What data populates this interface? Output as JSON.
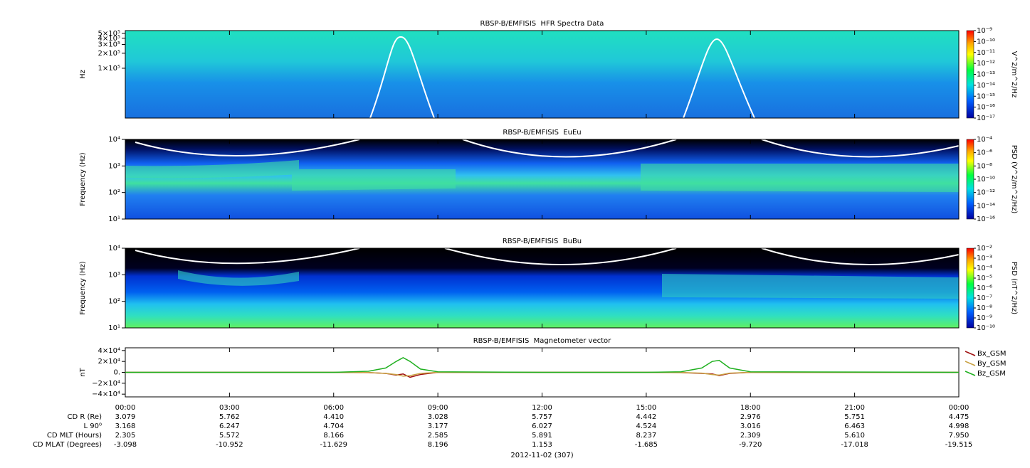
{
  "chart_data": [
    {
      "type": "spectrogram",
      "title": "RBSP-B/EMFISIS  HFR Spectra Data",
      "ylabel": "Hz",
      "log": true,
      "ylim": [
        10000,
        570000
      ],
      "yticks": [
        {
          "value": 500000,
          "label": "5×10⁵"
        },
        {
          "value": 400000,
          "label": "4×10⁵"
        },
        {
          "value": 300000,
          "label": "3×10⁵"
        },
        {
          "value": 200000,
          "label": "2×10⁵"
        },
        {
          "value": 100000,
          "label": "1×10⁵"
        }
      ],
      "colorbar": {
        "label": "V^2/m^2/Hz",
        "log": true,
        "lim": [
          1e-17,
          1e-09
        ],
        "ticks": [
          {
            "value": 1e-09,
            "label": "10⁻⁹"
          },
          {
            "value": 1e-10,
            "label": "10⁻¹⁰"
          },
          {
            "value": 1e-11,
            "label": "10⁻¹¹"
          },
          {
            "value": 1e-12,
            "label": "10⁻¹²"
          },
          {
            "value": 1e-13,
            "label": "10⁻¹³"
          },
          {
            "value": 1e-14,
            "label": "10⁻¹⁴"
          },
          {
            "value": 1e-15,
            "label": "10⁻¹⁵"
          },
          {
            "value": 1e-16,
            "label": "10⁻¹⁶"
          },
          {
            "value": 1e-17,
            "label": "10⁻¹⁷"
          }
        ]
      }
    },
    {
      "type": "spectrogram",
      "title": "RBSP-B/EMFISIS  EuEu",
      "ylabel": "Frequency (Hz)",
      "log": true,
      "ylim": [
        10,
        10000
      ],
      "yticks": [
        {
          "value": 10000,
          "label": "10⁴"
        },
        {
          "value": 1000,
          "label": "10³"
        },
        {
          "value": 100,
          "label": "10²"
        },
        {
          "value": 10,
          "label": "10¹"
        }
      ],
      "colorbar": {
        "label": "PSD (V^2/m^2/Hz)",
        "log": true,
        "lim": [
          1e-16,
          0.0001
        ],
        "ticks": [
          {
            "value": 0.0001,
            "label": "10⁻⁴"
          },
          {
            "value": 1e-06,
            "label": "10⁻⁶"
          },
          {
            "value": 1e-08,
            "label": "10⁻⁸"
          },
          {
            "value": 1e-10,
            "label": "10⁻¹⁰"
          },
          {
            "value": 1e-12,
            "label": "10⁻¹²"
          },
          {
            "value": 1e-14,
            "label": "10⁻¹⁴"
          },
          {
            "value": 1e-16,
            "label": "10⁻¹⁶"
          }
        ]
      }
    },
    {
      "type": "spectrogram",
      "title": "RBSP-B/EMFISIS  BuBu",
      "ylabel": "Frequency (Hz)",
      "log": true,
      "ylim": [
        10,
        10000
      ],
      "yticks": [
        {
          "value": 10000,
          "label": "10⁴"
        },
        {
          "value": 1000,
          "label": "10³"
        },
        {
          "value": 100,
          "label": "10²"
        },
        {
          "value": 10,
          "label": "10¹"
        }
      ],
      "colorbar": {
        "label": "PSD (nT^2/Hz)",
        "log": true,
        "lim": [
          1e-10,
          0.01
        ],
        "ticks": [
          {
            "value": 0.01,
            "label": "10⁻²"
          },
          {
            "value": 0.001,
            "label": "10⁻³"
          },
          {
            "value": 0.0001,
            "label": "10⁻⁴"
          },
          {
            "value": 1e-05,
            "label": "10⁻⁵"
          },
          {
            "value": 1e-06,
            "label": "10⁻⁶"
          },
          {
            "value": 1e-07,
            "label": "10⁻⁷"
          },
          {
            "value": 1e-08,
            "label": "10⁻⁸"
          },
          {
            "value": 1e-09,
            "label": "10⁻⁹"
          },
          {
            "value": 1e-10,
            "label": "10⁻¹⁰"
          }
        ]
      }
    },
    {
      "type": "line",
      "title": "RBSP-B/EMFISIS  Magnetometer vector",
      "ylabel": "nT",
      "ylim": [
        -45000,
        45000
      ],
      "yticks": [
        {
          "value": 40000,
          "label": "4×10⁴"
        },
        {
          "value": 20000,
          "label": "2×10⁴"
        },
        {
          "value": 0,
          "label": "0."
        },
        {
          "value": -20000,
          "label": "−2×10⁴"
        },
        {
          "value": -40000,
          "label": "−4×10⁴"
        }
      ],
      "xlim": [
        0,
        24
      ],
      "xticks": [
        {
          "value": 0,
          "label": "00:00"
        },
        {
          "value": 3,
          "label": "03:00"
        },
        {
          "value": 6,
          "label": "06:00"
        },
        {
          "value": 9,
          "label": "09:00"
        },
        {
          "value": 12,
          "label": "12:00"
        },
        {
          "value": 15,
          "label": "15:00"
        },
        {
          "value": 18,
          "label": "18:00"
        },
        {
          "value": 21,
          "label": "21:00"
        },
        {
          "value": 24,
          "label": "00:00"
        }
      ],
      "xlabel": "2012-11-02 (307)",
      "x": [
        0,
        6,
        7,
        7.5,
        7.8,
        8.0,
        8.2,
        8.5,
        9,
        12,
        15,
        16,
        16.6,
        16.9,
        17.1,
        17.4,
        18,
        24
      ],
      "series": [
        {
          "name": "Bx_GSM",
          "color": "#a01010",
          "values": [
            0,
            0,
            -500,
            -2000,
            -5000,
            -3000,
            -9000,
            -4000,
            0,
            0,
            0,
            -500,
            -2000,
            -3000,
            -6000,
            -2000,
            0,
            0
          ]
        },
        {
          "name": "By_GSM",
          "color": "#c8a040",
          "values": [
            0,
            0,
            -300,
            -2000,
            -4000,
            -7000,
            -6000,
            -2000,
            0,
            0,
            0,
            -300,
            -1500,
            -4000,
            -5000,
            -1500,
            0,
            0
          ]
        },
        {
          "name": "Bz_GSM",
          "color": "#20b020",
          "values": [
            0,
            0,
            2000,
            8000,
            20000,
            27000,
            20000,
            6000,
            1000,
            0,
            0,
            1000,
            8000,
            20000,
            22000,
            8000,
            1000,
            0
          ]
        }
      ]
    }
  ],
  "ephemeris": [
    {
      "label": "CD R (Re)",
      "values": [
        "3.079",
        "5.762",
        "4.410",
        "3.028",
        "5.757",
        "4.442",
        "2.976",
        "5.751",
        "4.475"
      ]
    },
    {
      "label": "L 90⁰",
      "values": [
        "3.168",
        "6.247",
        "4.704",
        "3.177",
        "6.027",
        "4.524",
        "3.016",
        "6.463",
        "4.998"
      ]
    },
    {
      "label": "CD MLT (Hours)",
      "values": [
        "2.305",
        "5.572",
        "8.166",
        "2.585",
        "5.891",
        "8.237",
        "2.309",
        "5.610",
        "7.950"
      ]
    },
    {
      "label": "CD MLAT (Degrees)",
      "values": [
        "-3.098",
        "-10.952",
        "-11.629",
        "8.196",
        "1.153",
        "-1.685",
        "-9.720",
        "-17.018",
        "-19.515"
      ]
    }
  ]
}
